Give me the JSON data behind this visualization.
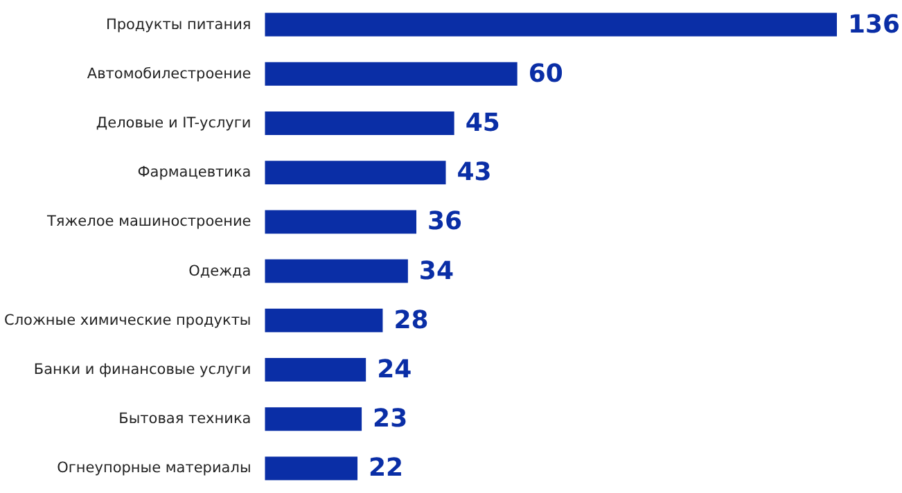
{
  "chart_data": {
    "type": "bar",
    "orientation": "horizontal",
    "data_labels": true,
    "categories": [
      "Продукты питания",
      "Автомобилестроение",
      "Деловые и IT-услуги",
      "Фармацевтика",
      "Тяжелое машиностроение",
      "Одежда",
      "Сложные химические продукты",
      "Банки и финансовые услуги",
      "Бытовая техника",
      "Огнеупорные материалы"
    ],
    "values": [
      136,
      60,
      45,
      43,
      36,
      34,
      28,
      24,
      23,
      22
    ],
    "color": "#0a2ea6"
  }
}
